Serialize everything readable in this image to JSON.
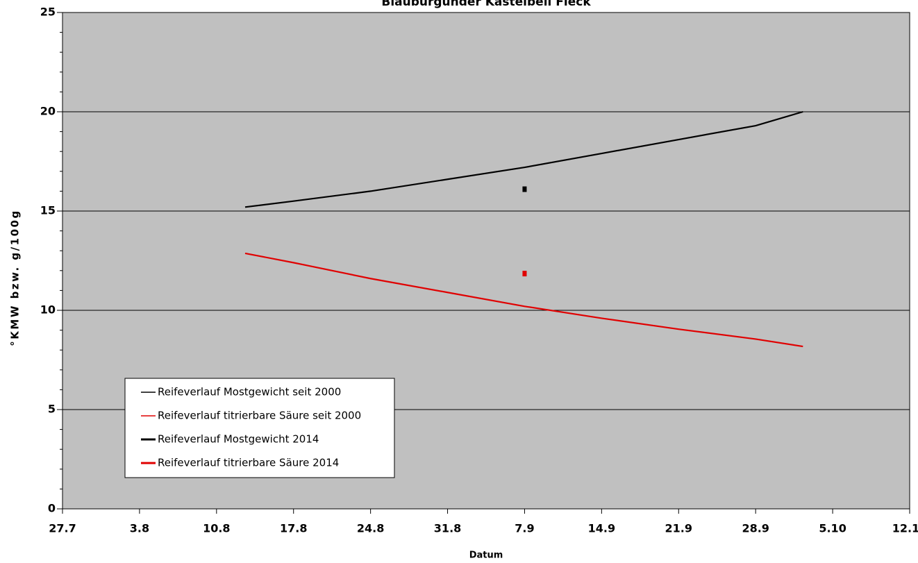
{
  "chart_data": {
    "type": "line",
    "title": "Blauburgunder Kastelbell Fleck",
    "x_label": "Datum",
    "y_label": "°KMW bzw. g/100g",
    "xlim": [
      0,
      77
    ],
    "xticks": [
      {
        "value": 0,
        "label": "27.7"
      },
      {
        "value": 7,
        "label": "3.8"
      },
      {
        "value": 14,
        "label": "10.8"
      },
      {
        "value": 21,
        "label": "17.8"
      },
      {
        "value": 28,
        "label": "24.8"
      },
      {
        "value": 35,
        "label": "31.8"
      },
      {
        "value": 42,
        "label": "7.9"
      },
      {
        "value": 49,
        "label": "14.9"
      },
      {
        "value": 56,
        "label": "21.9"
      },
      {
        "value": 63,
        "label": "28.9"
      },
      {
        "value": 70,
        "label": "5.10"
      },
      {
        "value": 77,
        "label": "12.10"
      }
    ],
    "ylim": [
      0,
      25
    ],
    "yticks": [
      0,
      5,
      10,
      15,
      20,
      25
    ],
    "grid": true,
    "legend": "lower left",
    "series": [
      {
        "name": "Reifeverlauf Mostgewicht seit 2000",
        "color": "#000000",
        "x": [
          16.6,
          21,
          28,
          35,
          42,
          49,
          56,
          63,
          67.3
        ],
        "values": [
          15.2,
          15.5,
          16.0,
          16.6,
          17.2,
          17.9,
          18.6,
          19.3,
          20.0
        ]
      },
      {
        "name": "Reifeverlauf titrierbare Säure seit 2000",
        "color": "#e00000",
        "x": [
          16.6,
          21,
          28,
          35,
          42,
          49,
          56,
          63,
          67.3
        ],
        "values": [
          12.87,
          12.4,
          11.6,
          10.9,
          10.2,
          9.6,
          9.05,
          8.55,
          8.18
        ]
      },
      {
        "name": "Reifeverlauf Mostgewicht 2014",
        "color": "#000000",
        "x": [
          42
        ],
        "values": [
          16.1
        ]
      },
      {
        "name": "Reifeverlauf titrierbare Säure 2014",
        "color": "#e00000",
        "x": [
          42
        ],
        "values": [
          11.85
        ]
      }
    ]
  }
}
